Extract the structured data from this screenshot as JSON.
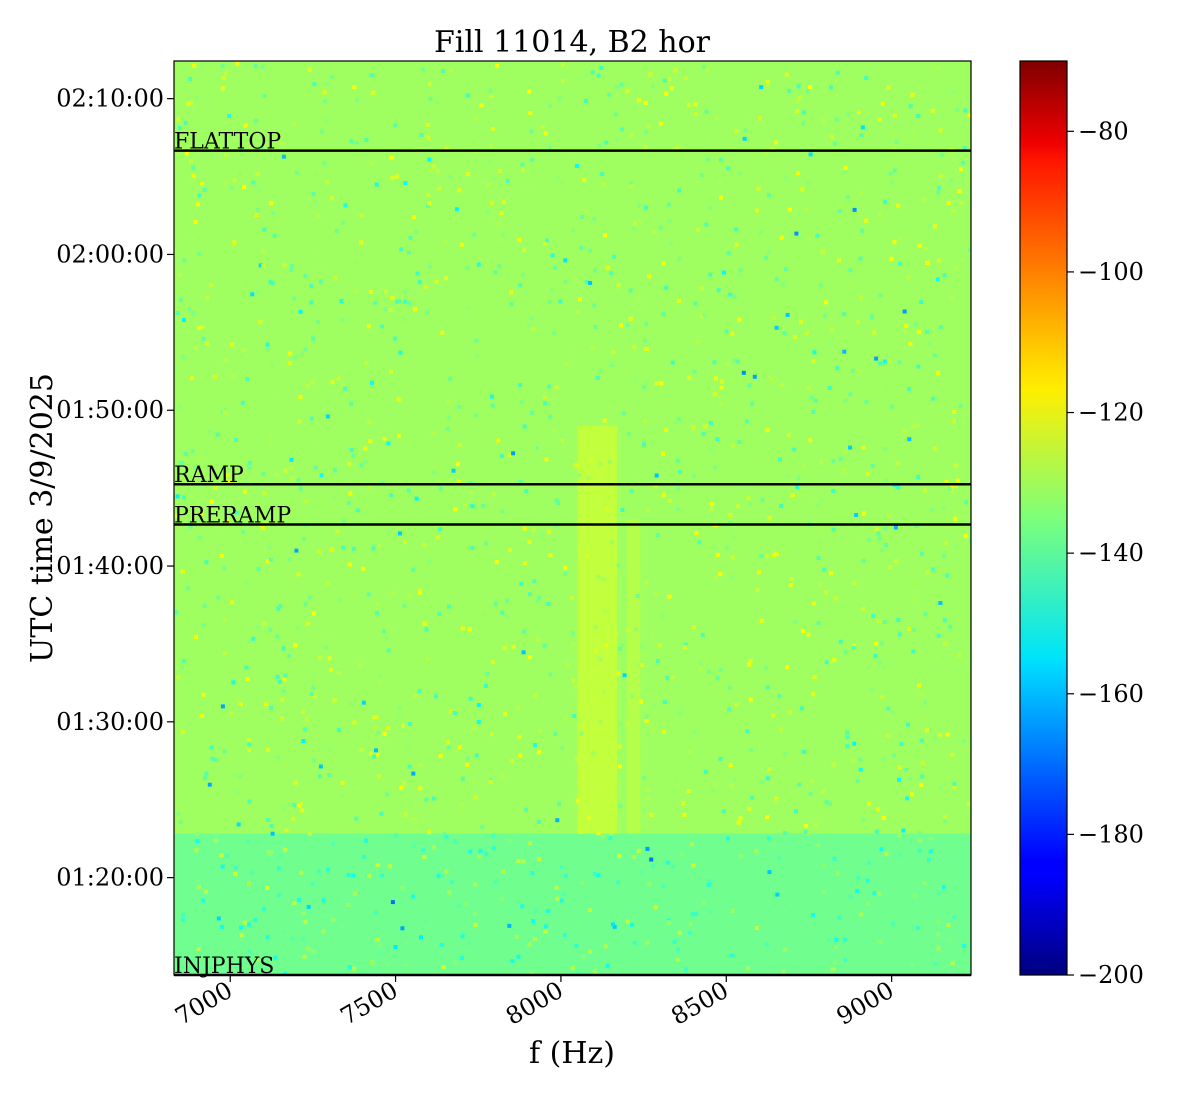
{
  "chart_data": {
    "type": "heatmap",
    "title": "Fill 11014, B2 hor",
    "xlabel": "f (Hz)",
    "ylabel": "UTC time 3/9/2025",
    "xlim": [
      6830,
      9240
    ],
    "ylim": [
      "01:13:45",
      "02:12:25"
    ],
    "x_ticks": [
      {
        "value": 7000,
        "label": "7000"
      },
      {
        "value": 7500,
        "label": "7500"
      },
      {
        "value": 8000,
        "label": "8000"
      },
      {
        "value": 8500,
        "label": "8500"
      },
      {
        "value": 9000,
        "label": "9000"
      }
    ],
    "y_ticks": [
      {
        "value": "01:20:00",
        "label": "01:20:00"
      },
      {
        "value": "01:30:00",
        "label": "01:30:00"
      },
      {
        "value": "01:40:00",
        "label": "01:40:00"
      },
      {
        "value": "01:50:00",
        "label": "01:50:00"
      },
      {
        "value": "02:00:00",
        "label": "02:00:00"
      },
      {
        "value": "02:10:00",
        "label": "02:10:00"
      }
    ],
    "phase_markers": [
      {
        "label": "FLATTOP",
        "time": "02:06:40"
      },
      {
        "label": "RAMP",
        "time": "01:45:15"
      },
      {
        "label": "PRERAMP",
        "time": "01:42:40"
      },
      {
        "label": "INJPHYS",
        "time": "01:13:45"
      }
    ],
    "colorbar": {
      "colormap": "jet",
      "range": [
        -200,
        -70
      ],
      "ticks": [
        {
          "value": -80,
          "label": "−80"
        },
        {
          "value": -100,
          "label": "−100"
        },
        {
          "value": -120,
          "label": "−120"
        },
        {
          "value": -140,
          "label": "−140"
        },
        {
          "value": -160,
          "label": "−160"
        },
        {
          "value": -180,
          "label": "−180"
        },
        {
          "value": -200,
          "label": "−200"
        }
      ]
    },
    "background_level": -132,
    "regions": [
      {
        "t_start": "01:13:45",
        "t_end": "01:22:50",
        "level": -137,
        "note": "injection period"
      },
      {
        "t_start": "01:22:50",
        "t_end": "02:12:25",
        "level": -131
      }
    ],
    "features": [
      {
        "f_center": 8110,
        "f_width": 120,
        "t_start": "01:22:50",
        "t_end": "01:49:00",
        "level": -123
      },
      {
        "f_center": 8220,
        "f_width": 40,
        "t_start": "01:22:50",
        "t_end": "01:43:00",
        "level": -126
      }
    ],
    "colors": {
      "phase_line": "#000000",
      "axis": "#000000"
    }
  }
}
